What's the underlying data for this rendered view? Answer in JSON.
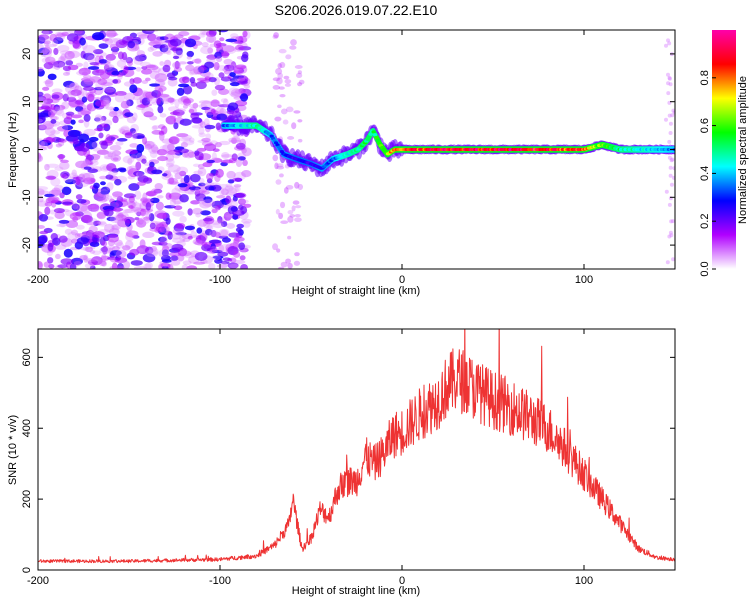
{
  "figure": {
    "title": "S206.2026.019.07.22.E10"
  },
  "chart_data": [
    {
      "type": "heatmap",
      "title": "S206.2026.019.07.22.E10",
      "xlabel": "Height of straight line (km)",
      "ylabel": "Frequency (Hz)",
      "xlim": [
        -200,
        150
      ],
      "ylim": [
        -25,
        25
      ],
      "x_ticks": [
        -200,
        -100,
        0,
        100
      ],
      "y_ticks": [
        -20,
        -10,
        0,
        10,
        20
      ],
      "colorbar": {
        "label": "Normalized spectral amplitude",
        "range": [
          0,
          1
        ],
        "ticks": [
          0.0,
          0.2,
          0.4,
          0.6,
          0.8
        ],
        "colors": [
          "#ffffff",
          "#b000ff",
          "#0000ff",
          "#00ffff",
          "#00ff00",
          "#ffff00",
          "#ff0000",
          "#ff00aa"
        ]
      },
      "ridge": {
        "x": [
          -98,
          -90,
          -80,
          -72,
          -65,
          -58,
          -50,
          -44,
          -38,
          -30,
          -24,
          -19,
          -16,
          -12,
          -8,
          -4,
          0,
          20,
          40,
          60,
          80,
          100,
          110,
          120,
          150
        ],
        "frequency": [
          5,
          5,
          5,
          3,
          -1,
          -2,
          -3,
          -4,
          -2,
          -1,
          0,
          2,
          4,
          1,
          -1,
          0,
          0,
          0,
          0,
          0,
          0,
          0,
          1,
          0,
          0
        ],
        "amplitude": [
          0.35,
          0.4,
          0.5,
          0.35,
          0.3,
          0.25,
          0.25,
          0.3,
          0.35,
          0.45,
          0.5,
          0.55,
          0.5,
          0.6,
          0.7,
          0.8,
          0.85,
          0.9,
          0.9,
          0.92,
          0.88,
          0.85,
          0.6,
          0.5,
          0.35
        ]
      },
      "noise_region_x": [
        -200,
        -90
      ],
      "sparse_noise_region_x": [
        -70,
        -55
      ]
    },
    {
      "type": "line",
      "xlabel": "Height of straight line (km)",
      "ylabel": "SNR (10 * v/v)",
      "xlim": [
        -200,
        150
      ],
      "ylim": [
        0,
        680
      ],
      "x_ticks": [
        -200,
        -100,
        0,
        100
      ],
      "y_ticks": [
        0,
        200,
        400,
        600
      ],
      "color": "#ee3333",
      "x": [
        -200,
        -150,
        -100,
        -80,
        -70,
        -62,
        -60,
        -55,
        -50,
        -45,
        -40,
        -35,
        -30,
        -25,
        -20,
        -15,
        -10,
        -5,
        0,
        10,
        20,
        25,
        30,
        35,
        40,
        50,
        60,
        70,
        80,
        90,
        100,
        110,
        120,
        130,
        140,
        150
      ],
      "y": [
        25,
        25,
        30,
        40,
        70,
        130,
        200,
        60,
        90,
        170,
        150,
        230,
        250,
        250,
        320,
        300,
        330,
        380,
        390,
        440,
        480,
        520,
        540,
        530,
        510,
        480,
        460,
        430,
        400,
        340,
        270,
        200,
        130,
        60,
        35,
        30
      ]
    }
  ]
}
